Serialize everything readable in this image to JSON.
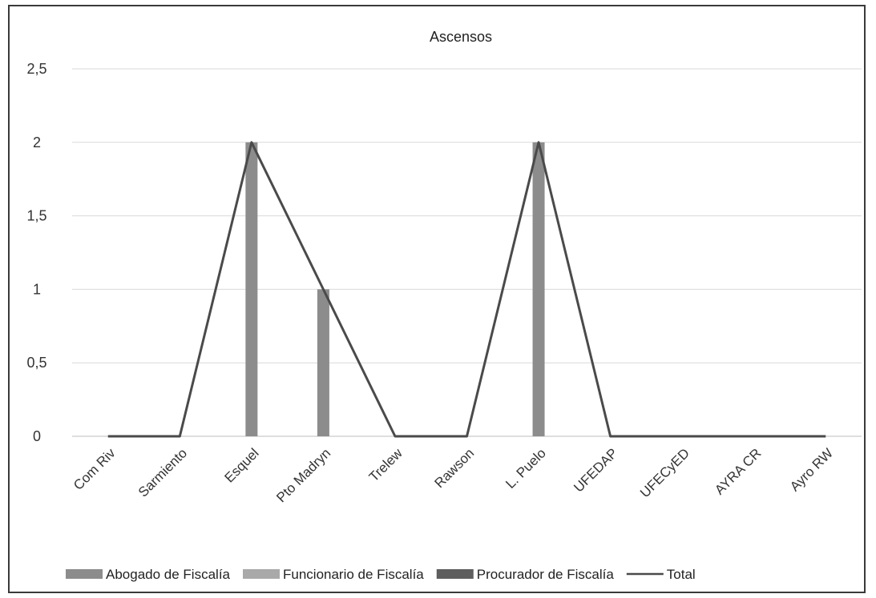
{
  "chart_data": {
    "type": "bar",
    "title": "Ascensos",
    "categories": [
      "Com Riv",
      "Sarmiento",
      "Esquel",
      "Pto Madryn",
      "Trelew",
      "Rawson",
      "L. Puelo",
      "UFEDAP",
      "UFECyED",
      "AYRA CR",
      "Ayro RW"
    ],
    "ylim": [
      0,
      2.5
    ],
    "yticks": [
      "0",
      "0,5",
      "1",
      "1,5",
      "2",
      "2,5"
    ],
    "grid": true,
    "legend_position": "bottom",
    "series": [
      {
        "name": "Abogado de Fiscalía",
        "kind": "bar",
        "color": "#8c8c8c",
        "values": [
          0,
          0,
          2,
          1,
          0,
          0,
          2,
          0,
          0,
          0,
          0
        ]
      },
      {
        "name": "Funcionario de Fiscalía",
        "kind": "bar",
        "color": "#a9a9a9",
        "values": [
          0,
          0,
          0,
          0,
          0,
          0,
          0,
          0,
          0,
          0,
          0
        ]
      },
      {
        "name": "Procurador de Fiscalía",
        "kind": "bar",
        "color": "#5e5e5e",
        "values": [
          0,
          0,
          0,
          0,
          0,
          0,
          0,
          0,
          0,
          0,
          0
        ]
      },
      {
        "name": "Total",
        "kind": "line",
        "color": "#4a4a4a",
        "values": [
          0,
          0,
          2,
          1,
          0,
          0,
          2,
          0,
          0,
          0,
          0
        ]
      }
    ]
  }
}
